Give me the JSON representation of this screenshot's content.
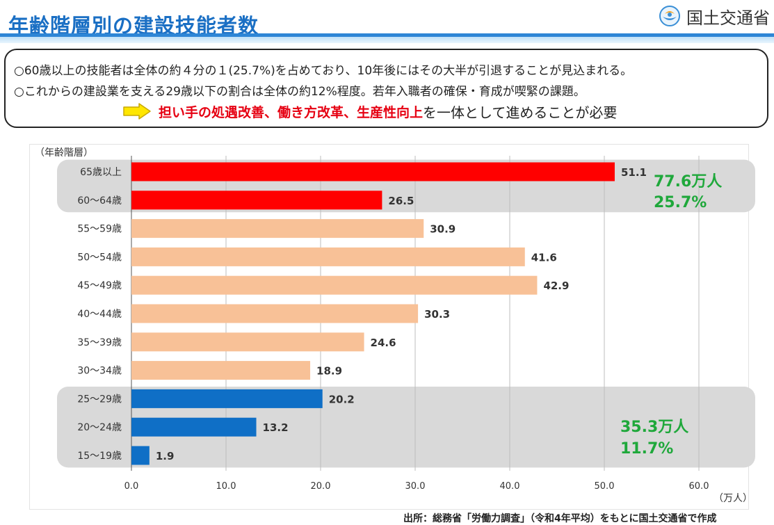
{
  "header": {
    "title": "年齢階層別の建設技能者数",
    "ministry_name": "国土交通省"
  },
  "summary": {
    "line1": "○60歳以上の技能者は全体の約４分の１(25.7%)を占めており、10年後にはその大半が引退することが見込まれる。",
    "line2": "○これからの建設業を支える29歳以下の割合は全体の約12%程度。若年入職者の確保・育成が喫緊の課題。",
    "conclusion_emphasis": "担い手の処遇改善、働き方改革、生産性向上",
    "conclusion_rest": "を一体として進めることが必要"
  },
  "chart_data": {
    "type": "bar",
    "orientation": "horizontal",
    "ylabel": "（年齢階層）",
    "xlabel": "（万人）",
    "xlim": [
      0,
      60
    ],
    "x_ticks": [
      "0.0",
      "10.0",
      "20.0",
      "30.0",
      "40.0",
      "50.0",
      "60.0"
    ],
    "grid": true,
    "categories": [
      "65歳以上",
      "60～64歳",
      "55～59歳",
      "50～54歳",
      "45～49歳",
      "40～44歳",
      "35～39歳",
      "30～34歳",
      "25～29歳",
      "20～24歳",
      "15～19歳"
    ],
    "values": [
      51.1,
      26.5,
      30.9,
      41.6,
      42.9,
      30.3,
      24.6,
      18.9,
      20.2,
      13.2,
      1.9
    ],
    "value_labels": [
      "51.1",
      "26.5",
      "30.9",
      "41.6",
      "42.9",
      "30.3",
      "24.6",
      "18.9",
      "20.2",
      "13.2",
      "1.9"
    ],
    "bar_colors": [
      "#ff0000",
      "#ff0000",
      "#f8c197",
      "#f8c197",
      "#f8c197",
      "#f8c197",
      "#f8c197",
      "#f8c197",
      "#0f6fc6",
      "#0f6fc6",
      "#0f6fc6"
    ],
    "groups": [
      {
        "from": 0,
        "to": 1,
        "total": "77.6万人",
        "share": "25.7%"
      },
      {
        "from": 8,
        "to": 10,
        "total": "35.3万人",
        "share": "11.7%"
      }
    ],
    "group_band_color": "#d9d9d9",
    "group_text_color": "#1fa83b"
  },
  "footer": {
    "source": "出所：総務省「労働力調査」（令和4年平均）をもとに国土交通省で作成"
  },
  "colors": {
    "title_blue": "#1a6fc4",
    "emphasis_red": "#e60012",
    "arrow_fill": "#ffe600"
  }
}
